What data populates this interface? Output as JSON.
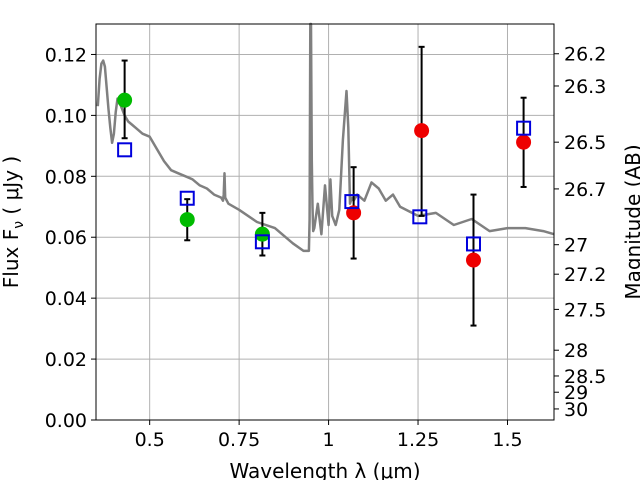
{
  "chart_data": {
    "type": "scatter",
    "xlabel": "Wavelength  λ (μm)",
    "ylabel": "Flux  F",
    "ylabel_sub": "ν",
    "ylabel_unit": "  ( μJy )",
    "y2label": "Magnitude (AB)",
    "xlim": [
      0.35,
      1.63
    ],
    "ylim": [
      0,
      0.13
    ],
    "grid": true,
    "x_ticks": [
      0.5,
      0.75,
      1,
      1.25,
      1.5
    ],
    "x_tick_labels": [
      "0.5",
      "0.75",
      "1",
      "1.25",
      "1.5"
    ],
    "y_ticks": [
      0,
      0.02,
      0.04,
      0.06,
      0.08,
      0.1,
      0.12
    ],
    "y_tick_labels": [
      "0.00",
      "0.02",
      "0.04",
      "0.06",
      "0.08",
      "0.10",
      "0.12"
    ],
    "y2_ticks": [
      26.2,
      26.3,
      26.5,
      26.7,
      27,
      27.2,
      27.5,
      28,
      28.5,
      29,
      30
    ],
    "y2_tick_labels": [
      "26.2",
      "26.3",
      "26.5",
      "26.7",
      "27",
      "27.2",
      "27.5",
      "28",
      "28.5",
      "29",
      "30"
    ],
    "series": [
      {
        "marker": "circle",
        "color": "#00bb00",
        "points": [
          {
            "x": 0.43,
            "y": 0.105,
            "yerr_low": 0.0925,
            "yerr_high": 0.118
          },
          {
            "x": 0.605,
            "y": 0.0658,
            "yerr_low": 0.059,
            "yerr_high": 0.0725
          },
          {
            "x": 0.815,
            "y": 0.061,
            "yerr_low": 0.054,
            "yerr_high": 0.068
          }
        ]
      },
      {
        "marker": "circle",
        "color": "#ee0000",
        "points": [
          {
            "x": 1.07,
            "y": 0.068,
            "yerr_low": 0.053,
            "yerr_high": 0.083
          },
          {
            "x": 1.26,
            "y": 0.095,
            "yerr_low": 0.067,
            "yerr_high": 0.1225
          },
          {
            "x": 1.405,
            "y": 0.0525,
            "yerr_low": 0.031,
            "yerr_high": 0.074
          },
          {
            "x": 1.545,
            "y": 0.0912,
            "yerr_low": 0.0765,
            "yerr_high": 0.1058
          }
        ]
      },
      {
        "marker": "square",
        "color": "#0000dd",
        "points": [
          {
            "x": 0.43,
            "y": 0.0887
          },
          {
            "x": 0.605,
            "y": 0.0728
          },
          {
            "x": 0.815,
            "y": 0.0585
          },
          {
            "x": 1.065,
            "y": 0.0717
          },
          {
            "x": 1.255,
            "y": 0.0667
          },
          {
            "x": 1.405,
            "y": 0.0578
          },
          {
            "x": 1.545,
            "y": 0.0958
          }
        ]
      }
    ],
    "model_spectrum": {
      "color": "#808080",
      "x": [
        0.355,
        0.36,
        0.365,
        0.37,
        0.375,
        0.38,
        0.385,
        0.39,
        0.395,
        0.4,
        0.405,
        0.41,
        0.42,
        0.43,
        0.44,
        0.45,
        0.46,
        0.47,
        0.48,
        0.5,
        0.52,
        0.54,
        0.56,
        0.58,
        0.6,
        0.62,
        0.64,
        0.66,
        0.68,
        0.7,
        0.705,
        0.707,
        0.709,
        0.711,
        0.72,
        0.75,
        0.8,
        0.85,
        0.9,
        0.93,
        0.945,
        0.947,
        0.949,
        0.951,
        0.953,
        0.955,
        0.957,
        0.96,
        0.97,
        0.98,
        0.99,
        1.0,
        1.005,
        1.01,
        1.02,
        1.03,
        1.04,
        1.05,
        1.055,
        1.06,
        1.065,
        1.07,
        1.08,
        1.1,
        1.12,
        1.14,
        1.16,
        1.18,
        1.2,
        1.25,
        1.3,
        1.35,
        1.4,
        1.45,
        1.5,
        1.55,
        1.6,
        1.63
      ],
      "y": [
        0.103,
        0.112,
        0.117,
        0.118,
        0.116,
        0.109,
        0.102,
        0.096,
        0.091,
        0.094,
        0.101,
        0.1055,
        0.103,
        0.1,
        0.098,
        0.097,
        0.096,
        0.095,
        0.094,
        0.093,
        0.089,
        0.085,
        0.082,
        0.081,
        0.08,
        0.079,
        0.077,
        0.076,
        0.074,
        0.073,
        0.072,
        0.074,
        0.081,
        0.073,
        0.071,
        0.069,
        0.065,
        0.063,
        0.058,
        0.0555,
        0.0555,
        0.066,
        0.13,
        0.13,
        0.085,
        0.07,
        0.062,
        0.063,
        0.071,
        0.061,
        0.077,
        0.064,
        0.079,
        0.067,
        0.064,
        0.069,
        0.092,
        0.108,
        0.096,
        0.071,
        0.073,
        0.072,
        0.074,
        0.072,
        0.078,
        0.076,
        0.072,
        0.074,
        0.07,
        0.067,
        0.068,
        0.064,
        0.066,
        0.062,
        0.063,
        0.063,
        0.062,
        0.061
      ]
    }
  }
}
